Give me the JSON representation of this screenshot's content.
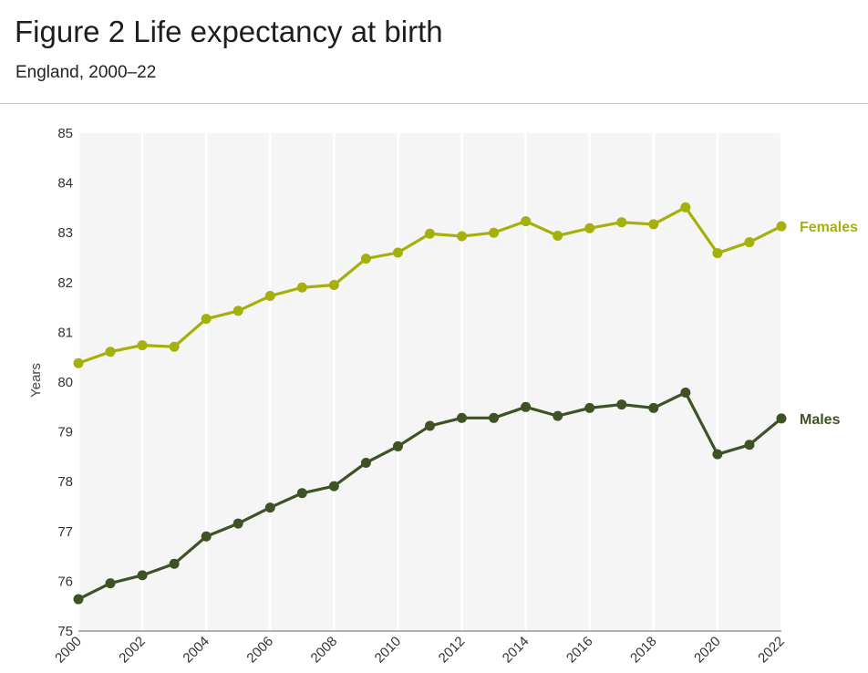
{
  "header": {
    "title": "Figure 2 Life expectancy at birth",
    "subtitle": "England, 2000–22"
  },
  "chart_data": {
    "type": "line",
    "ylabel": "Years",
    "xlabel": "",
    "ylim": [
      75,
      85
    ],
    "xlim": [
      2000,
      2022
    ],
    "y_ticks": [
      75,
      76,
      77,
      78,
      79,
      80,
      81,
      82,
      83,
      84,
      85
    ],
    "x_ticks": [
      2000,
      2002,
      2004,
      2006,
      2008,
      2010,
      2012,
      2014,
      2016,
      2018,
      2020,
      2022
    ],
    "grid": "vertical",
    "legend": "direct labels at right end of lines",
    "x": [
      2000,
      2001,
      2002,
      2003,
      2004,
      2005,
      2006,
      2007,
      2008,
      2009,
      2010,
      2011,
      2012,
      2013,
      2014,
      2015,
      2016,
      2017,
      2018,
      2019,
      2020,
      2021,
      2022
    ],
    "series": [
      {
        "name": "Females",
        "color": "#a5b00a",
        "values": [
          80.38,
          80.61,
          80.74,
          80.71,
          81.27,
          81.43,
          81.73,
          81.9,
          81.95,
          82.48,
          82.6,
          82.98,
          82.93,
          83.0,
          83.23,
          82.94,
          83.09,
          83.21,
          83.17,
          83.51,
          82.59,
          82.81,
          83.13
        ]
      },
      {
        "name": "Males",
        "color": "#3e5225",
        "values": [
          75.64,
          75.96,
          76.12,
          76.35,
          76.9,
          77.16,
          77.48,
          77.77,
          77.91,
          78.38,
          78.71,
          79.12,
          79.28,
          79.28,
          79.5,
          79.32,
          79.48,
          79.55,
          79.48,
          79.79,
          78.55,
          78.74,
          79.27
        ]
      }
    ],
    "plot_background": "#f5f5f5"
  }
}
